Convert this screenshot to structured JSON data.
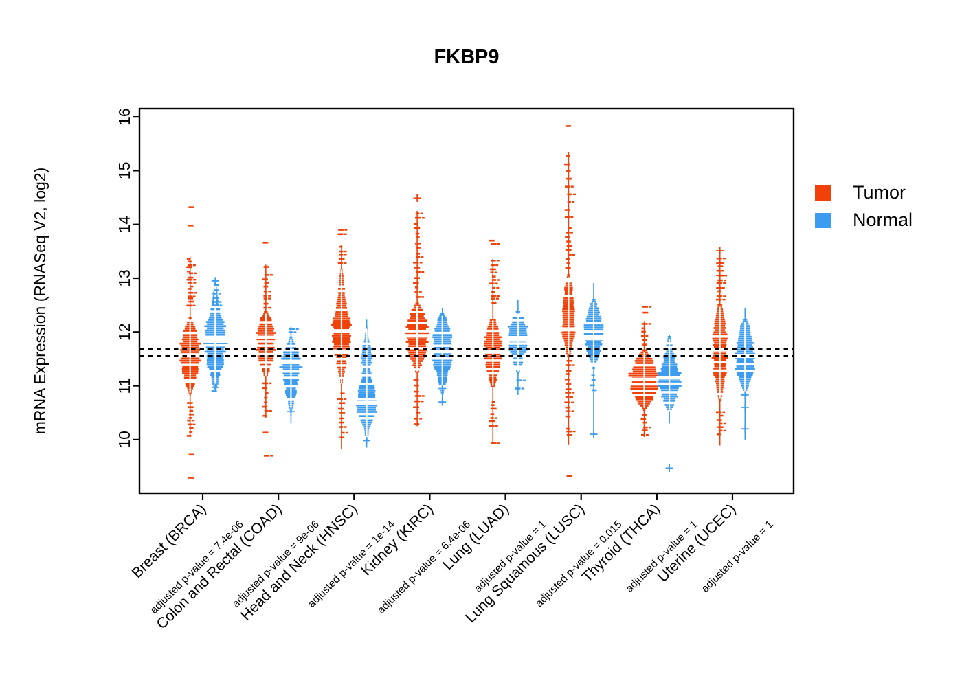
{
  "title": "FKBP9",
  "y_axis": {
    "label": "mRNA Expression (RNASeq V2, log2)",
    "ticks": [
      10,
      11,
      12,
      13,
      14,
      15,
      16
    ],
    "range": [
      9.0,
      16.15
    ]
  },
  "legend": {
    "items": [
      {
        "label": "Tumor",
        "color": "#F04109"
      },
      {
        "label": "Normal",
        "color": "#3B9CF0"
      }
    ]
  },
  "reference_lines": {
    "values": [
      11.68,
      11.55
    ],
    "color": "#000000",
    "style": "dashed"
  },
  "chart_data": {
    "type": "violin",
    "title": "FKBP9",
    "ylabel": "mRNA Expression (RNASeq V2, log2)",
    "ylim": [
      9.0,
      16.15
    ],
    "legend_position": "right",
    "series_colors": {
      "tumor": "#F04109",
      "normal": "#3B9CF0"
    },
    "groups": [
      {
        "label": "Breast (BRCA)",
        "p_label": "adjusted p-value = 7.4e-06",
        "tumor": {
          "median": 11.57,
          "body": [
            10.83,
            12.26
          ],
          "profile": [
            [
              10.83,
              1
            ],
            [
              11.05,
              7
            ],
            [
              11.3,
              12
            ],
            [
              11.55,
              15
            ],
            [
              11.8,
              13
            ],
            [
              12.05,
              9
            ],
            [
              12.26,
              2
            ]
          ],
          "spine": [
            10.05,
            13.4
          ],
          "scatter_bands": [
            {
              "from": 12.47,
              "to": 13.4,
              "n": 16
            },
            {
              "from": 10.05,
              "to": 10.7,
              "n": 10
            }
          ],
          "outliers": [
            13.98,
            14.32,
            9.72,
            9.29
          ],
          "crosses": []
        },
        "normal": {
          "median": 11.82,
          "body": [
            10.94,
            12.94
          ],
          "profile": [
            [
              10.94,
              2
            ],
            [
              11.2,
              7
            ],
            [
              11.5,
              13
            ],
            [
              11.8,
              16
            ],
            [
              12.1,
              14
            ],
            [
              12.35,
              8
            ],
            [
              12.6,
              4
            ],
            [
              12.94,
              1
            ]
          ],
          "spine": [
            10.9,
            13.0
          ],
          "scatter_bands": [
            {
              "from": 12.45,
              "to": 12.9,
              "n": 6
            }
          ],
          "outliers": [
            10.9
          ],
          "crosses": [
            12.95,
            10.97
          ]
        }
      },
      {
        "label": "Colon and Rectal (COAD)",
        "p_label": "adjusted p-value = 9e-06",
        "tumor": {
          "median": 11.9,
          "body": [
            11.15,
            12.38
          ],
          "profile": [
            [
              11.15,
              2
            ],
            [
              11.4,
              8
            ],
            [
              11.7,
              13
            ],
            [
              11.95,
              14
            ],
            [
              12.18,
              10
            ],
            [
              12.38,
              3
            ]
          ],
          "spine": [
            10.4,
            13.25
          ],
          "scatter_bands": [
            {
              "from": 12.42,
              "to": 13.1,
              "n": 9
            },
            {
              "from": 10.4,
              "to": 11.08,
              "n": 8
            }
          ],
          "outliers": [
            13.66,
            13.21,
            10.13,
            9.7
          ],
          "crosses": []
        },
        "normal": {
          "median": 11.45,
          "body": [
            10.5,
            11.9
          ],
          "profile": [
            [
              10.5,
              1
            ],
            [
              10.8,
              6
            ],
            [
              11.1,
              11
            ],
            [
              11.35,
              15
            ],
            [
              11.55,
              13
            ],
            [
              11.75,
              7
            ],
            [
              11.9,
              2
            ]
          ],
          "spine": [
            10.3,
            12.1
          ],
          "scatter_bands": [
            {
              "from": 11.95,
              "to": 12.1,
              "n": 2
            }
          ],
          "outliers": [],
          "crosses": [
            10.52
          ]
        }
      },
      {
        "label": "Head and Neck (HNSC)",
        "p_label": "adjusted p-value = 1e-14",
        "tumor": {
          "median": 12.02,
          "body": [
            11.0,
            13.2
          ],
          "profile": [
            [
              11.0,
              1
            ],
            [
              11.3,
              5
            ],
            [
              11.6,
              9
            ],
            [
              11.9,
              13
            ],
            [
              12.15,
              13
            ],
            [
              12.45,
              9
            ],
            [
              12.7,
              5
            ],
            [
              13.0,
              3
            ],
            [
              13.2,
              1
            ]
          ],
          "spine": [
            9.83,
            13.62
          ],
          "scatter_bands": [
            {
              "from": 13.25,
              "to": 13.62,
              "n": 5
            },
            {
              "from": 10.0,
              "to": 10.9,
              "n": 10
            }
          ],
          "outliers": [
            13.9,
            13.82
          ],
          "crosses": []
        },
        "normal": {
          "median": 10.68,
          "body": [
            9.98,
            12.1
          ],
          "profile": [
            [
              9.98,
              1
            ],
            [
              10.2,
              4
            ],
            [
              10.45,
              11
            ],
            [
              10.65,
              16
            ],
            [
              10.9,
              13
            ],
            [
              11.12,
              7
            ],
            [
              11.32,
              6
            ],
            [
              11.5,
              8
            ],
            [
              11.68,
              6
            ],
            [
              11.9,
              3
            ],
            [
              12.1,
              1
            ]
          ],
          "spine": [
            9.85,
            12.23
          ],
          "scatter_bands": [],
          "outliers": [],
          "crosses": [
            9.98
          ]
        }
      },
      {
        "label": "Kidney (KIRC)",
        "p_label": "adjusted p-value = 6.4e-06",
        "tumor": {
          "median": 11.93,
          "body": [
            11.23,
            12.53
          ],
          "profile": [
            [
              11.23,
              2
            ],
            [
              11.5,
              9
            ],
            [
              11.75,
              14
            ],
            [
              12.0,
              16
            ],
            [
              12.28,
              12
            ],
            [
              12.53,
              3
            ]
          ],
          "spine": [
            10.25,
            14.25
          ],
          "scatter_bands": [
            {
              "from": 12.6,
              "to": 14.25,
              "n": 18
            },
            {
              "from": 10.25,
              "to": 11.15,
              "n": 9
            }
          ],
          "outliers": [],
          "crosses": [
            14.49
          ]
        },
        "normal": {
          "median": 11.64,
          "body": [
            10.85,
            12.34
          ],
          "profile": [
            [
              10.85,
              2
            ],
            [
              11.1,
              6
            ],
            [
              11.35,
              11
            ],
            [
              11.6,
              15
            ],
            [
              11.88,
              14
            ],
            [
              12.12,
              9
            ],
            [
              12.34,
              3
            ]
          ],
          "spine": [
            10.68,
            12.45
          ],
          "scatter_bands": [],
          "outliers": [],
          "crosses": [
            10.95,
            10.7
          ]
        }
      },
      {
        "label": "Lung (LUAD)",
        "p_label": "adjusted p-value = 1",
        "tumor": {
          "median": 11.63,
          "body": [
            10.96,
            12.26
          ],
          "profile": [
            [
              10.96,
              2
            ],
            [
              11.2,
              7
            ],
            [
              11.45,
              11
            ],
            [
              11.68,
              13
            ],
            [
              11.9,
              11
            ],
            [
              12.1,
              7
            ],
            [
              12.26,
              3
            ]
          ],
          "spine": [
            9.93,
            13.36
          ],
          "scatter_bands": [
            {
              "from": 12.5,
              "to": 13.36,
              "n": 12
            },
            {
              "from": 10.22,
              "to": 10.75,
              "n": 7
            }
          ],
          "outliers": [
            13.7,
            13.64,
            9.93
          ],
          "crosses": []
        },
        "normal": {
          "median": 11.85,
          "body": [
            11.23,
            12.38
          ],
          "profile": [
            [
              11.23,
              2
            ],
            [
              11.45,
              7
            ],
            [
              11.7,
              12
            ],
            [
              11.92,
              15
            ],
            [
              12.12,
              12
            ],
            [
              12.38,
              3
            ]
          ],
          "spine": [
            10.83,
            12.6
          ],
          "scatter_bands": [],
          "outliers": [
            11.1,
            10.95
          ],
          "crosses": []
        }
      },
      {
        "label": "Lung Squamous (LUSC)",
        "p_label": "adjusted p-value = 0.015",
        "tumor": {
          "median": 12.05,
          "body": [
            11.55,
            13.06
          ],
          "profile": [
            [
              11.55,
              2
            ],
            [
              11.78,
              6
            ],
            [
              12.0,
              9
            ],
            [
              12.3,
              9
            ],
            [
              12.6,
              7
            ],
            [
              12.88,
              5
            ],
            [
              13.06,
              2
            ]
          ],
          "spine": [
            9.9,
            15.35
          ],
          "scatter_bands": [
            {
              "from": 13.15,
              "to": 13.98,
              "n": 10
            },
            {
              "from": 14.05,
              "to": 15.35,
              "n": 9
            },
            {
              "from": 10.4,
              "to": 11.5,
              "n": 13
            },
            {
              "from": 10.05,
              "to": 10.25,
              "n": 3
            }
          ],
          "outliers": [
            15.83,
            9.32
          ],
          "crosses": []
        },
        "normal": {
          "median": 11.88,
          "body": [
            11.32,
            12.6
          ],
          "profile": [
            [
              11.32,
              2
            ],
            [
              11.58,
              8
            ],
            [
              11.82,
              13
            ],
            [
              12.02,
              14
            ],
            [
              12.28,
              10
            ],
            [
              12.6,
              3
            ]
          ],
          "spine": [
            10.08,
            12.91
          ],
          "scatter_bands": [
            {
              "from": 10.88,
              "to": 11.22,
              "n": 4
            }
          ],
          "outliers": [],
          "crosses": [
            10.1
          ]
        }
      },
      {
        "label": "Thyroid (THCA)",
        "p_label": "adjusted p-value = 1",
        "tumor": {
          "median": 11.12,
          "body": [
            10.55,
            11.66
          ],
          "profile": [
            [
              10.55,
              2
            ],
            [
              10.8,
              13
            ],
            [
              11.0,
              19
            ],
            [
              11.18,
              21
            ],
            [
              11.38,
              16
            ],
            [
              11.55,
              8
            ],
            [
              11.66,
              3
            ]
          ],
          "spine": [
            10.05,
            12.2
          ],
          "scatter_bands": [
            {
              "from": 11.72,
              "to": 12.2,
              "n": 6
            },
            {
              "from": 10.05,
              "to": 10.5,
              "n": 6
            }
          ],
          "outliers": [
            12.47,
            12.36
          ],
          "crosses": []
        },
        "normal": {
          "median": 11.15,
          "body": [
            10.49,
            11.91
          ],
          "profile": [
            [
              10.49,
              2
            ],
            [
              10.72,
              9
            ],
            [
              10.95,
              15
            ],
            [
              11.15,
              17
            ],
            [
              11.35,
              12
            ],
            [
              11.6,
              6
            ],
            [
              11.91,
              2
            ]
          ],
          "spine": [
            10.3,
            11.95
          ],
          "scatter_bands": [],
          "outliers": [],
          "crosses": [
            9.47
          ]
        }
      },
      {
        "label": "Uterine (UCEC)",
        "p_label": "adjusted p-value = 1",
        "tumor": {
          "median": 11.67,
          "body": [
            10.72,
            12.51
          ],
          "profile": [
            [
              10.72,
              2
            ],
            [
              11.0,
              6
            ],
            [
              11.3,
              9
            ],
            [
              11.6,
              11
            ],
            [
              11.9,
              10
            ],
            [
              12.2,
              7
            ],
            [
              12.51,
              3
            ]
          ],
          "spine": [
            9.89,
            13.51
          ],
          "scatter_bands": [
            {
              "from": 12.55,
              "to": 13.4,
              "n": 11
            },
            {
              "from": 10.06,
              "to": 10.55,
              "n": 7
            }
          ],
          "outliers": [],
          "crosses": [
            13.51,
            13.28,
            13.05,
            12.82
          ]
        },
        "normal": {
          "median": 11.55,
          "body": [
            10.85,
            12.23
          ],
          "profile": [
            [
              10.85,
              2
            ],
            [
              11.1,
              8
            ],
            [
              11.35,
              13
            ],
            [
              11.6,
              14
            ],
            [
              11.88,
              10
            ],
            [
              12.12,
              6
            ],
            [
              12.23,
              3
            ]
          ],
          "spine": [
            10.0,
            12.45
          ],
          "scatter_bands": [],
          "outliers": [],
          "crosses": [
            10.83,
            10.6,
            10.2
          ]
        }
      }
    ]
  }
}
